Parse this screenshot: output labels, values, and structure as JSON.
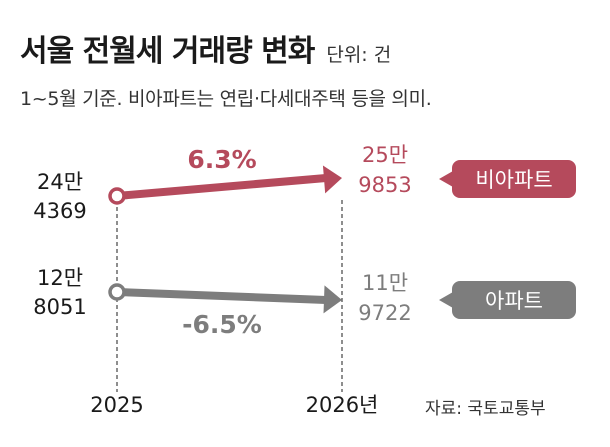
{
  "header": {
    "title": "서울 전월세 거래량 변화",
    "unit": "단위: 건",
    "subtitle": "1~5월 기준. 비아파트는 연립·다세대주택 등을 의미."
  },
  "source": "자료: 국토교통부",
  "colors": {
    "non_apartment": "#b54a5c",
    "apartment": "#7d7d7d",
    "text": "#1a1a1a"
  },
  "chart_data": {
    "type": "line",
    "x": [
      "2025",
      "2026년"
    ],
    "series": [
      {
        "name": "비아파트",
        "values": [
          244369,
          259853
        ],
        "value_labels": [
          [
            "24만",
            "4369"
          ],
          [
            "25만",
            "9853"
          ]
        ],
        "change": "6.3%"
      },
      {
        "name": "아파트",
        "values": [
          128051,
          119722
        ],
        "value_labels": [
          [
            "12만",
            "8051"
          ],
          [
            "11만",
            "9722"
          ]
        ],
        "change": "-6.5%"
      }
    ]
  }
}
